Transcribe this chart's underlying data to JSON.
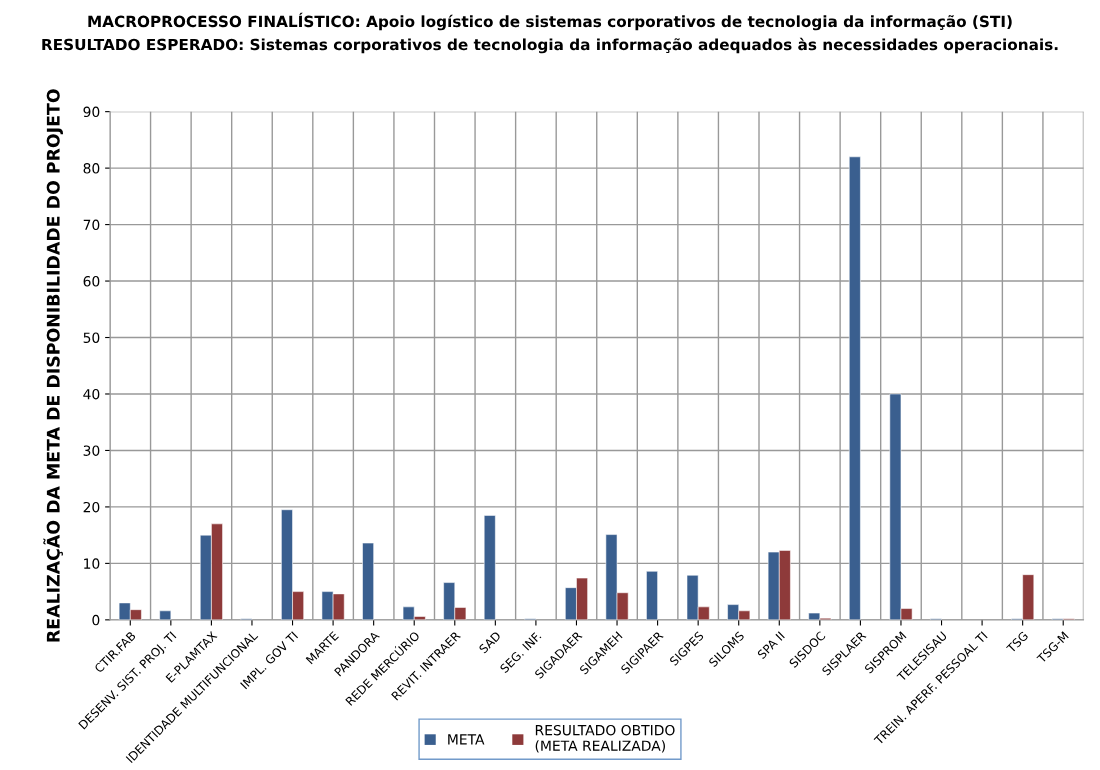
{
  "chart_data": {
    "type": "bar",
    "title": "MACROPROCESSO FINALÍSTICO: Apoio logístico de sistemas corporativos de tecnologia da informação (STI)",
    "subtitle": "RESULTADO ESPERADO: Sistemas corporativos de tecnologia da informação adequados às necessidades operacionais.",
    "ylabel": "REALIZAÇÃO DA META DE DISPONIBILIDADE DO PROJETO",
    "categories": [
      "CTIR.FAB",
      "DESENV. SIST. PROJ. TI",
      "E-PLAMTAX",
      "IDENTIDADE MULTIFUNCIONAL",
      "IMPL. GOV TI",
      "MARTE",
      "PANDORA",
      "REDE MERCÚRIO",
      "REVIT. INTRAER",
      "SAD",
      "SEG. INF.",
      "SIGADAER",
      "SIGAMEH",
      "SIGIPAER",
      "SIGPES",
      "SILOMS",
      "SPA II",
      "SISDOC",
      "SISPLAER",
      "SISPROM",
      "TELESISAU",
      "TREIN. APERF. PESSOAL TI",
      "TSG",
      "TSG-M"
    ],
    "series": [
      {
        "name": "META",
        "color": "#3a5f8f",
        "values": [
          3.0,
          1.6,
          15.0,
          0.2,
          19.5,
          5.0,
          13.6,
          2.3,
          6.6,
          18.5,
          0.2,
          5.7,
          15.1,
          8.6,
          7.9,
          2.7,
          12.0,
          1.2,
          82.0,
          40.0,
          0.2,
          null,
          0.2,
          0.2
        ]
      },
      {
        "name": "RESULTADO OBTIDO\n(META REALIZADA)",
        "color": "#8e3a3a",
        "values": [
          1.8,
          null,
          17.0,
          null,
          5.0,
          4.6,
          null,
          0.6,
          2.2,
          null,
          null,
          7.4,
          4.8,
          null,
          2.3,
          1.6,
          12.3,
          0.3,
          null,
          2.0,
          null,
          null,
          8.0,
          0.2
        ]
      }
    ],
    "ylim": [
      0,
      90
    ],
    "yticks": [
      0,
      10,
      20,
      30,
      40,
      50,
      60,
      70,
      80,
      90
    ],
    "grid": true,
    "legend": "bottom"
  }
}
